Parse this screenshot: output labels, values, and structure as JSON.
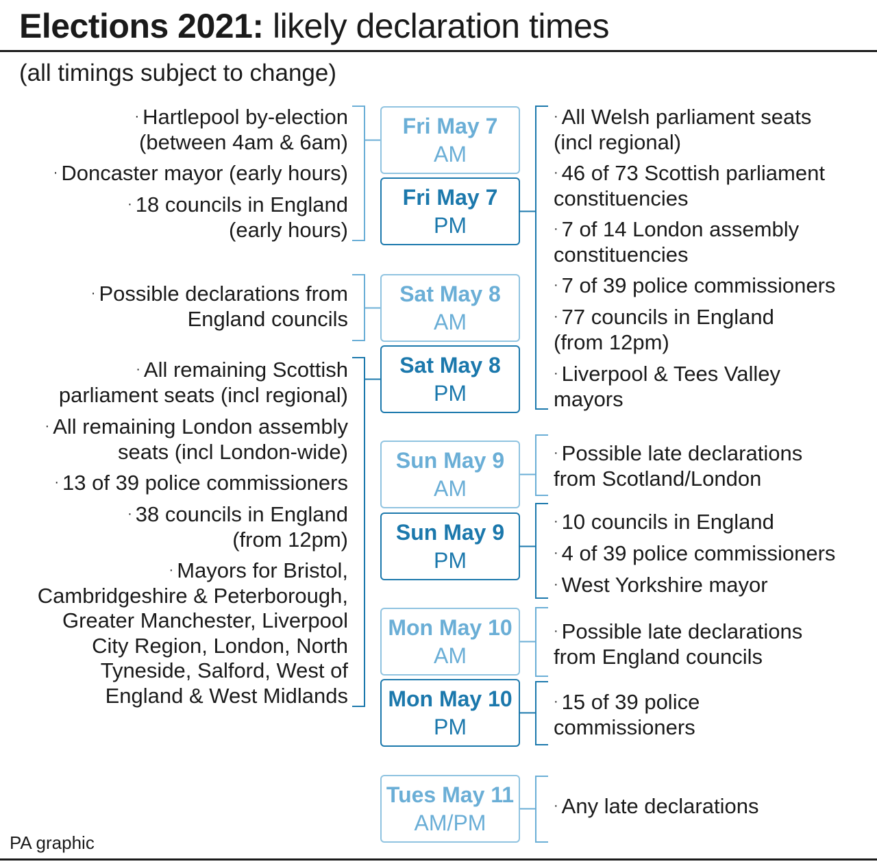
{
  "title": {
    "bold": "Elections 2021:",
    "light": "likely declaration times"
  },
  "subtitle": "(all timings subject to change)",
  "credit": "PA graphic",
  "colors": {
    "am": "#6aaed6",
    "pm": "#1b78ac",
    "text": "#1a1a1a"
  },
  "slots": [
    {
      "day": "Fri May 7",
      "time": "AM",
      "style": "am"
    },
    {
      "day": "Fri May 7",
      "time": "PM",
      "style": "pm"
    },
    {
      "day": "Sat May 8",
      "time": "AM",
      "style": "am"
    },
    {
      "day": "Sat May 8",
      "time": "PM",
      "style": "pm"
    },
    {
      "day": "Sun May 9",
      "time": "AM",
      "style": "am"
    },
    {
      "day": "Sun May 9",
      "time": "PM",
      "style": "pm"
    },
    {
      "day": "Mon May 10",
      "time": "AM",
      "style": "am"
    },
    {
      "day": "Mon May 10",
      "time": "PM",
      "style": "pm"
    },
    {
      "day": "Tues May 11",
      "time": "AM/PM",
      "style": "am"
    }
  ],
  "left_groups": [
    {
      "items": [
        [
          "Hartlepool by-election",
          "(between 4am & 6am)"
        ],
        [
          "Doncaster mayor (early hours)"
        ],
        [
          "18 councils in England",
          "(early hours)"
        ]
      ]
    },
    {
      "items": [
        [
          "Possible declarations from",
          "England councils"
        ]
      ]
    },
    {
      "items": [
        [
          "All remaining Scottish",
          "parliament seats (incl regional)"
        ],
        [
          "All remaining London assembly",
          "seats (incl London-wide)"
        ],
        [
          "13 of 39 police commissioners"
        ],
        [
          "38 councils in England",
          "(from 12pm)"
        ],
        [
          "Mayors for Bristol,",
          "Cambridgeshire & Peterborough,",
          "Greater Manchester, Liverpool",
          "City Region, London, North",
          "Tyneside, Salford, West of",
          "England & West Midlands"
        ]
      ]
    }
  ],
  "right_groups": [
    {
      "items": [
        [
          "All Welsh parliament seats",
          "(incl regional)"
        ],
        [
          "46 of 73 Scottish parliament",
          "constituencies"
        ],
        [
          "7 of 14 London assembly",
          "constituencies"
        ],
        [
          "7 of 39 police commissioners"
        ],
        [
          "77 councils in England",
          "(from 12pm)"
        ],
        [
          "Liverpool & Tees Valley",
          "mayors"
        ]
      ]
    },
    {
      "items": [
        [
          "Possible late declarations",
          "from Scotland/London"
        ]
      ]
    },
    {
      "items": [
        [
          "10 councils in England"
        ],
        [
          "4 of 39 police commissioners"
        ],
        [
          "West Yorkshire mayor"
        ]
      ]
    },
    {
      "items": [
        [
          "Possible late declarations",
          "from England councils"
        ]
      ]
    },
    {
      "items": [
        [
          "15 of 39 police",
          "commissioners"
        ]
      ]
    },
    {
      "items": [
        [
          "Any late declarations"
        ]
      ]
    }
  ]
}
